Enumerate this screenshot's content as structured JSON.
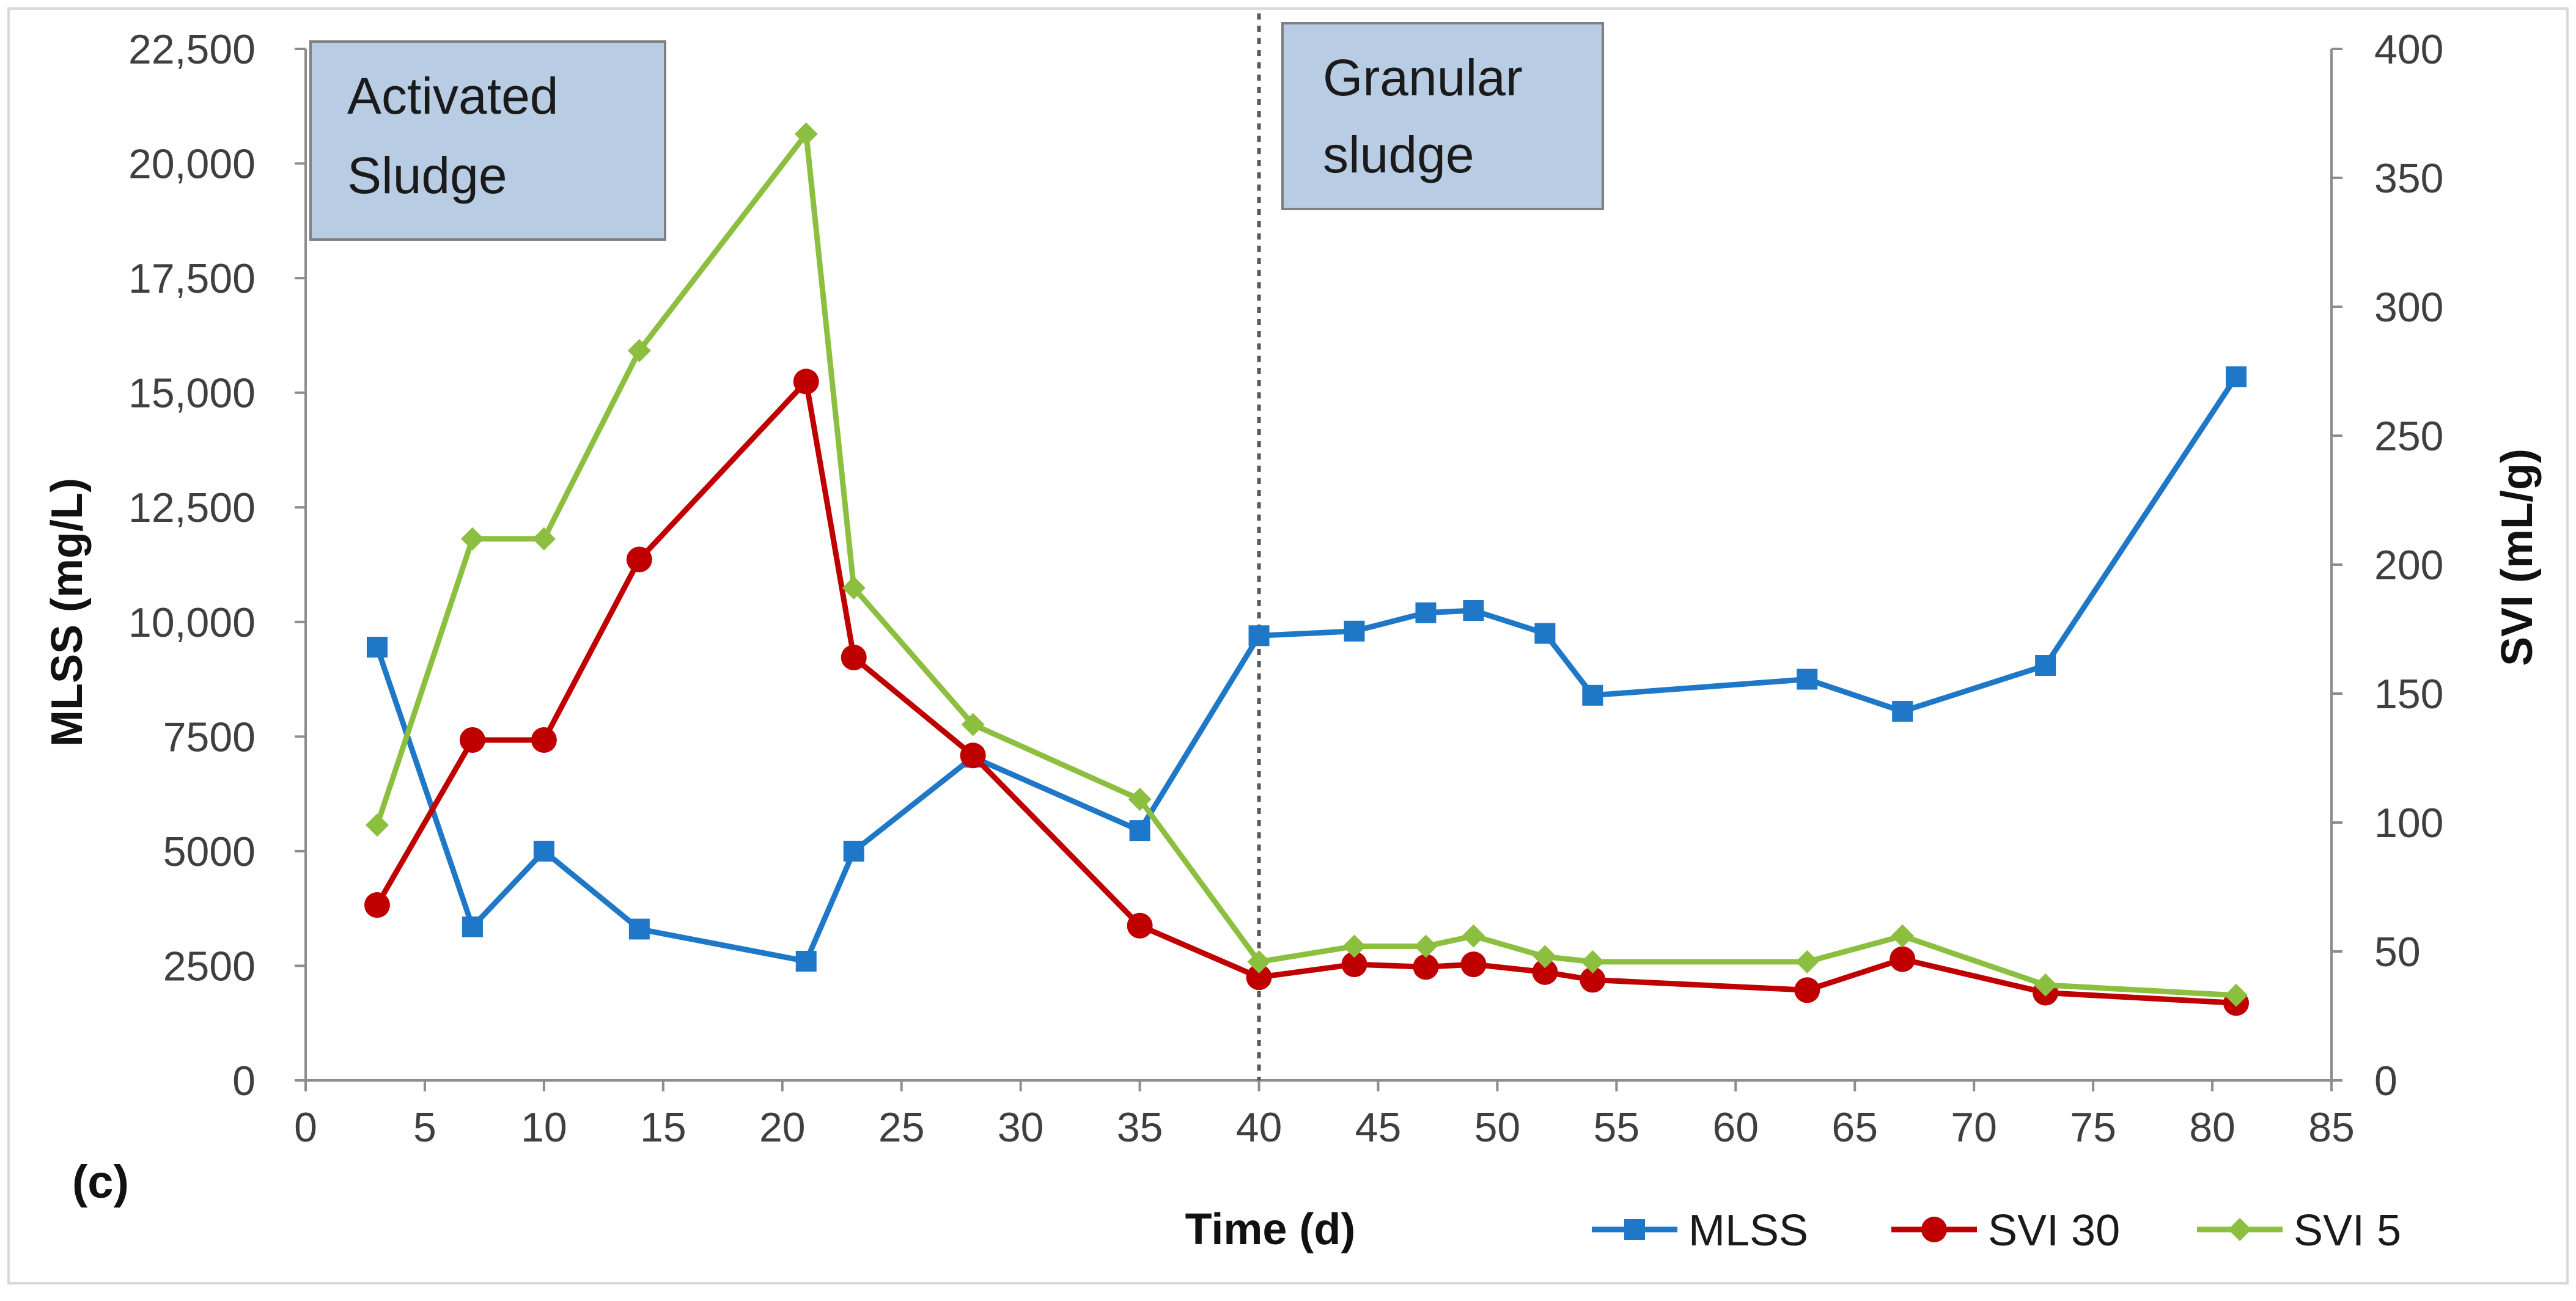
{
  "chart_data": {
    "type": "line",
    "panel_label": "(c)",
    "xlabel": "Time (d)",
    "ylabel_left": "MLSS (mg/L)",
    "ylabel_right": "SVI (mL/g)",
    "xlim": [
      0,
      85
    ],
    "ylim_left": [
      0,
      22500
    ],
    "ylim_right": [
      0,
      400
    ],
    "x_ticks": [
      "0",
      "5",
      "10",
      "15",
      "20",
      "25",
      "30",
      "35",
      "40",
      "45",
      "50",
      "55",
      "60",
      "65",
      "70",
      "75",
      "80",
      "85"
    ],
    "y_left_ticks": [
      "0",
      "2500",
      "5000",
      "7500",
      "10,000",
      "12,500",
      "15,000",
      "17,500",
      "20,000",
      "22,500"
    ],
    "y_right_ticks": [
      "0",
      "50",
      "100",
      "150",
      "200",
      "250",
      "300",
      "350",
      "400"
    ],
    "phase_divider_x": 40,
    "phase_labels": [
      {
        "line1": "Activated",
        "line2": "Sludge"
      },
      {
        "line1": "Granular",
        "line2": "sludge"
      }
    ],
    "series": [
      {
        "name": "MLSS",
        "axis": "left",
        "color": "#1f77c8",
        "marker": "square",
        "x": [
          3,
          7,
          10,
          14,
          21,
          23,
          28,
          35,
          40,
          44,
          47,
          49,
          52,
          54,
          63,
          67,
          73,
          81
        ],
        "values": [
          9450,
          3350,
          5000,
          3300,
          2600,
          5000,
          7050,
          5450,
          9700,
          9800,
          10200,
          10250,
          9750,
          8400,
          8750,
          8050,
          9050,
          15350
        ]
      },
      {
        "name": "SVI 30",
        "axis": "right",
        "color": "#c00000",
        "marker": "circle",
        "x": [
          3,
          7,
          10,
          14,
          21,
          23,
          28,
          35,
          40,
          44,
          47,
          49,
          52,
          54,
          63,
          67,
          73,
          81
        ],
        "values": [
          68,
          132,
          132,
          202,
          271,
          164,
          126,
          60,
          40,
          45,
          44,
          45,
          42,
          39,
          35,
          47,
          34,
          30
        ]
      },
      {
        "name": "SVI 5",
        "axis": "right",
        "color": "#8cbf3f",
        "marker": "diamond",
        "x": [
          3,
          7,
          10,
          14,
          21,
          23,
          28,
          35,
          40,
          44,
          47,
          49,
          52,
          54,
          63,
          67,
          73,
          81
        ],
        "values": [
          99,
          210,
          210,
          283,
          367,
          191,
          138,
          109,
          46,
          52,
          52,
          56,
          48,
          46,
          46,
          56,
          37,
          33
        ]
      }
    ]
  }
}
